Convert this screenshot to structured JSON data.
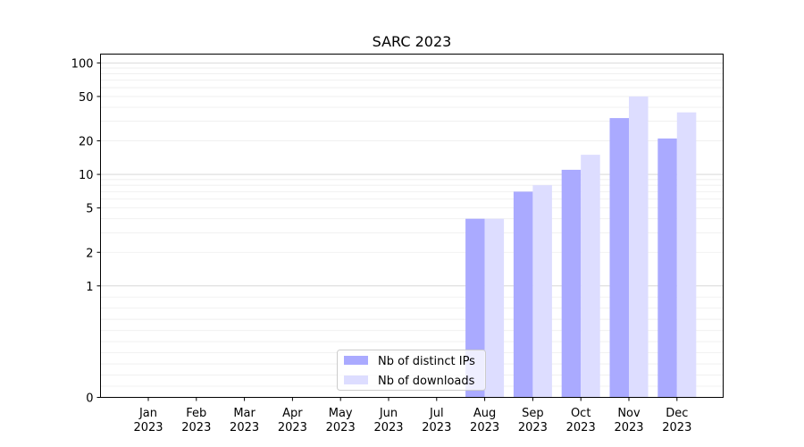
{
  "chart_data": {
    "type": "bar",
    "title": "SARC 2023",
    "xlabel": "",
    "ylabel": "",
    "scale": "symlog",
    "grid": true,
    "legend_position": "bottom-center",
    "categories": [
      [
        "Jan",
        "2023"
      ],
      [
        "Feb",
        "2023"
      ],
      [
        "Mar",
        "2023"
      ],
      [
        "Apr",
        "2023"
      ],
      [
        "May",
        "2023"
      ],
      [
        "Jun",
        "2023"
      ],
      [
        "Jul",
        "2023"
      ],
      [
        "Aug",
        "2023"
      ],
      [
        "Sep",
        "2023"
      ],
      [
        "Oct",
        "2023"
      ],
      [
        "Nov",
        "2023"
      ],
      [
        "Dec",
        "2023"
      ]
    ],
    "ylim": [
      0,
      120
    ],
    "y_ticks": [
      0,
      1,
      2,
      5,
      10,
      20,
      50,
      100
    ],
    "y_tick_labels": [
      "0",
      "1",
      "2",
      "5",
      "10",
      "20",
      "50",
      "100"
    ],
    "series": [
      {
        "name": "Nb of distinct IPs",
        "color": "#aaaaff",
        "values": [
          0,
          0,
          0,
          0,
          0,
          0,
          0,
          4,
          7,
          11,
          32,
          21
        ]
      },
      {
        "name": "Nb of downloads",
        "color": "#ddddff",
        "values": [
          0,
          0,
          0,
          0,
          0,
          0,
          0,
          4,
          8,
          15,
          50,
          36
        ]
      }
    ]
  }
}
